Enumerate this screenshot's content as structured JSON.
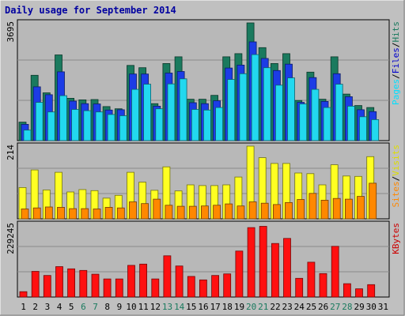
{
  "chart_data": {
    "type": "bar",
    "title": "Daily usage for September 2014",
    "categories": [
      "1",
      "2",
      "3",
      "4",
      "5",
      "6",
      "7",
      "8",
      "9",
      "10",
      "11",
      "12",
      "13",
      "14",
      "15",
      "16",
      "17",
      "18",
      "19",
      "20",
      "21",
      "22",
      "23",
      "24",
      "25",
      "26",
      "27",
      "28",
      "29",
      "30",
      "31"
    ],
    "weekend_days": [
      "6",
      "7",
      "13",
      "14",
      "20",
      "21",
      "27",
      "28"
    ],
    "panels": [
      {
        "id": "hits",
        "ymax": 3695,
        "ymax_label": "3695",
        "labels": [
          {
            "text": "Pages",
            "color": "#00e0ff"
          },
          {
            "text": "/",
            "color": "#000000"
          },
          {
            "text": "Files",
            "color": "#0000cc"
          },
          {
            "text": "/",
            "color": "#000000"
          },
          {
            "text": "Hits",
            "color": "#1a7a5e"
          }
        ],
        "series": [
          {
            "name": "Hits",
            "color": "#1a7a5e",
            "values": [
              580,
              2050,
              1500,
              2690,
              1330,
              1280,
              1290,
              1070,
              1000,
              2360,
              2290,
              1160,
              2420,
              2630,
              1300,
              1300,
              1420,
              2630,
              2730,
              3695,
              2920,
              2420,
              2730,
              1260,
              2150,
              1300,
              2630,
              1460,
              1100,
              1040,
              null
            ]
          },
          {
            "name": "Files",
            "color": "#1c3ce6",
            "values": [
              510,
              1690,
              1440,
              2160,
              1240,
              1160,
              1150,
              960,
              970,
              2090,
              2090,
              1080,
              2120,
              2170,
              1190,
              1160,
              1250,
              2280,
              2370,
              3100,
              2580,
              2200,
              2400,
              1200,
              1980,
              1230,
              2100,
              1380,
              970,
              910,
              null
            ]
          },
          {
            "name": "Pages",
            "color": "#22d8ef",
            "values": [
              330,
              1200,
              900,
              1410,
              980,
              940,
              900,
              820,
              780,
              1610,
              1770,
              1000,
              1780,
              1940,
              980,
              960,
              1040,
              1920,
              2100,
              2700,
              2290,
              1740,
              1970,
              1150,
              1610,
              1040,
              1770,
              1080,
              750,
              660,
              null
            ]
          }
        ]
      },
      {
        "id": "visits",
        "ymax": 214,
        "ymax_label": "214",
        "labels": [
          {
            "text": "Sites",
            "color": "#ff8800"
          },
          {
            "text": "/",
            "color": "#000000"
          },
          {
            "text": "Visits",
            "color": "#dddd00"
          }
        ],
        "series": [
          {
            "name": "Visits",
            "color": "#ffff22",
            "values": [
              92,
              144,
              85,
              137,
              79,
              86,
              83,
              61,
              69,
              137,
              108,
              84,
              153,
              82,
              100,
              98,
              98,
              100,
              123,
              214,
              180,
              163,
              163,
              135,
              133,
              100,
              159,
              126,
              125,
              183,
              null
            ]
          },
          {
            "name": "Sites",
            "color": "#ff8800",
            "values": [
              29,
              32,
              35,
              34,
              30,
              30,
              29,
              34,
              32,
              50,
              45,
              58,
              40,
              37,
              37,
              38,
              40,
              44,
              38,
              50,
              46,
              42,
              48,
              57,
              75,
              55,
              60,
              58,
              66,
              105,
              null
            ]
          }
        ]
      },
      {
        "id": "kbytes",
        "ymax": 229245,
        "ymax_label": "229245",
        "labels": [
          {
            "text": "KBytes",
            "color": "#cc0000"
          }
        ],
        "series": [
          {
            "name": "KBytes",
            "color": "#ff1010",
            "values": [
              17000,
              81000,
              68000,
              96000,
              89000,
              84000,
              72000,
              57000,
              57000,
              100000,
              104000,
              57000,
              130000,
              98000,
              65000,
              54000,
              68000,
              73000,
              145000,
              219000,
              223000,
              169000,
              185000,
              59000,
              110000,
              74000,
              160000,
              42000,
              26000,
              39000,
              null
            ]
          }
        ]
      }
    ]
  }
}
